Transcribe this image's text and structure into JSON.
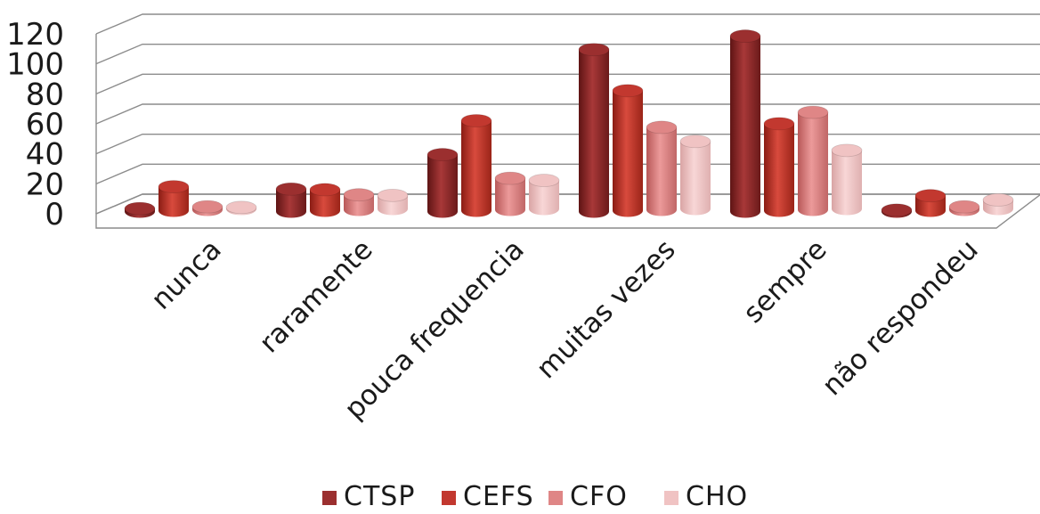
{
  "chart_data": {
    "type": "bar",
    "title": "",
    "xlabel": "",
    "ylabel": "",
    "ylim": [
      0,
      120
    ],
    "yticks": [
      "0",
      "20",
      "40",
      "60",
      "80",
      "100",
      "120"
    ],
    "grid": true,
    "legend_position": "bottom",
    "categories": [
      "nunca",
      "raramente",
      "pouca frequencia",
      "muitas vezes",
      "sempre",
      "não respondeu"
    ],
    "series": [
      {
        "name": "CTSP",
        "color": "#9b2f2f",
        "values": [
          2,
          15,
          38,
          108,
          117,
          1
        ]
      },
      {
        "name": "CEFS",
        "color": "#c2382f",
        "values": [
          16,
          14,
          60,
          80,
          58,
          10
        ]
      },
      {
        "name": "CFO",
        "color": "#df8686",
        "values": [
          2,
          10,
          21,
          55,
          65,
          2
        ]
      },
      {
        "name": "CHO",
        "color": "#f0c3c3",
        "values": [
          1,
          9,
          19,
          45,
          39,
          6
        ]
      }
    ]
  }
}
